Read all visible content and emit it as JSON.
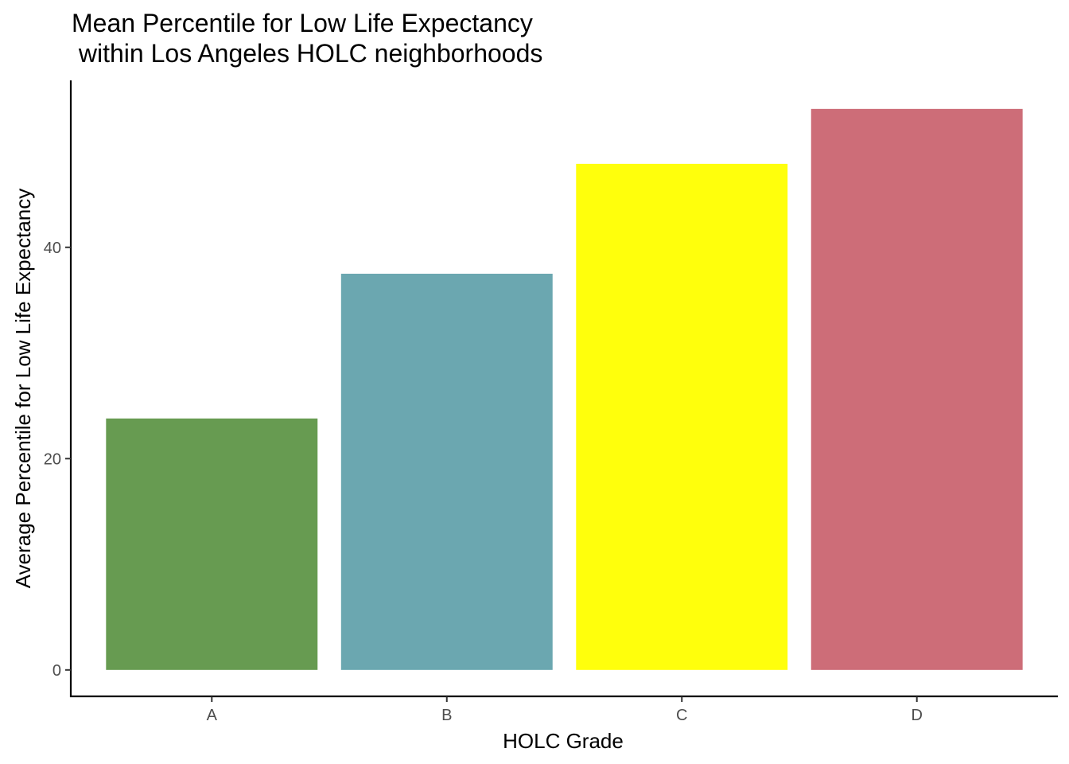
{
  "chart_data": {
    "type": "bar",
    "title_lines": [
      "Mean Percentile for Low Life Expectancy",
      " within Los Angeles HOLC neighborhoods"
    ],
    "xlabel": "HOLC Grade",
    "ylabel": "Average Percentile for Low Life Expectancy",
    "categories": [
      "A",
      "B",
      "C",
      "D"
    ],
    "values": [
      23.8,
      37.5,
      47.9,
      53.1
    ],
    "colors": [
      "#679b51",
      "#6ba7b0",
      "#ffff0c",
      "#cd6d78"
    ],
    "yticks": [
      0,
      20,
      40
    ],
    "ylim": [
      -2.5,
      55.8
    ],
    "grid": false,
    "legend": "none"
  }
}
